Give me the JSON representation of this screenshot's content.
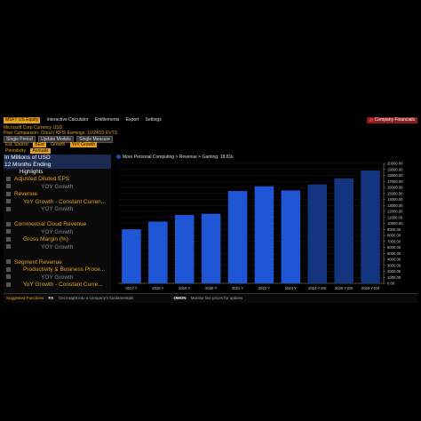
{
  "toolbar": {
    "ticker": "MSFT US Equity",
    "menus": [
      "Interactive Calculator",
      "Entitlements",
      "Export",
      "Settings"
    ],
    "right_label": "Company Financials"
  },
  "subheader": {
    "line1": "Microsoft Corp   Currency USD",
    "line2": "Peer Comparison: Cloud | KPIS   Earnings: 10/24/23   EVTS"
  },
  "controls": {
    "row1": [
      "Single Period",
      "Update Models",
      "Single Measure"
    ],
    "row2_label": "Est. Source",
    "row2_value": "BEst",
    "row2_extra": "Growth",
    "row2_value2": "YoY Growth",
    "row3_label": "Periodicity",
    "row3_value": "Annuals"
  },
  "left_panel": {
    "unit": "In Millions of USD",
    "period": "12 Months Ending",
    "highlights": "Highlights",
    "items": [
      {
        "type": "cat",
        "label": "Adjusted Diluted EPS"
      },
      {
        "type": "sub",
        "label": "YOY Growth"
      },
      {
        "type": "cat",
        "label": "Revenue"
      },
      {
        "type": "catb",
        "label": "YoY Growth - Constant Curren..."
      },
      {
        "type": "sub",
        "label": "YOY Growth"
      },
      {
        "type": "gap",
        "label": ""
      },
      {
        "type": "cat",
        "label": "Commercial Cloud Revenue"
      },
      {
        "type": "sub",
        "label": "YOY Growth"
      },
      {
        "type": "catb",
        "label": "Gross Margin (%)"
      },
      {
        "type": "sub",
        "label": "YOY Growth"
      },
      {
        "type": "gap",
        "label": ""
      },
      {
        "type": "cat",
        "label": "Segment Revenue"
      },
      {
        "type": "catb",
        "label": "Productivity & Business Proce..."
      },
      {
        "type": "sub",
        "label": "YOY Growth"
      },
      {
        "type": "catb",
        "label": "YoY Growth - Constant Curre..."
      }
    ]
  },
  "breadcrumb": "More Personal Computing > Revenue > Gaming: 18.81k",
  "status": {
    "items": [
      {
        "key": "Suggested Functions",
        "desc": ""
      },
      {
        "key": "FA",
        "desc": "Get insight into a company's fundamentals"
      },
      {
        "key": "OMON",
        "desc": "Monitor live prices for options"
      }
    ]
  },
  "chart_data": {
    "type": "bar",
    "categories": [
      "2017 Y",
      "2018 Y",
      "2019 Y",
      "2020 Y",
      "2021 Y",
      "2022 Y",
      "2023 Y",
      "2024 Y Est",
      "2025 Y Est",
      "2026 Y Est"
    ],
    "values": [
      9000,
      10300,
      11400,
      11600,
      15400,
      16200,
      15500,
      16500,
      17500,
      18810
    ],
    "estimate_from_index": 7,
    "ylim": [
      0,
      20000
    ],
    "yticks": [
      "0.00",
      "1000.00",
      "2000.00",
      "3000.00",
      "4000.00",
      "5000.00",
      "6000.00",
      "7000.00",
      "8000.00",
      "9000.00",
      "10000.00",
      "11000.00",
      "12000.00",
      "13000.00",
      "14000.00",
      "15000.00",
      "16000.00",
      "17000.00",
      "18000.00",
      "19000.00",
      "20000.00"
    ],
    "colors": {
      "actual": "#1f56d6",
      "estimate": "#13357f",
      "grid": "#1c1c1c",
      "axis": "#888"
    },
    "title": "",
    "xlabel": "",
    "ylabel": ""
  }
}
